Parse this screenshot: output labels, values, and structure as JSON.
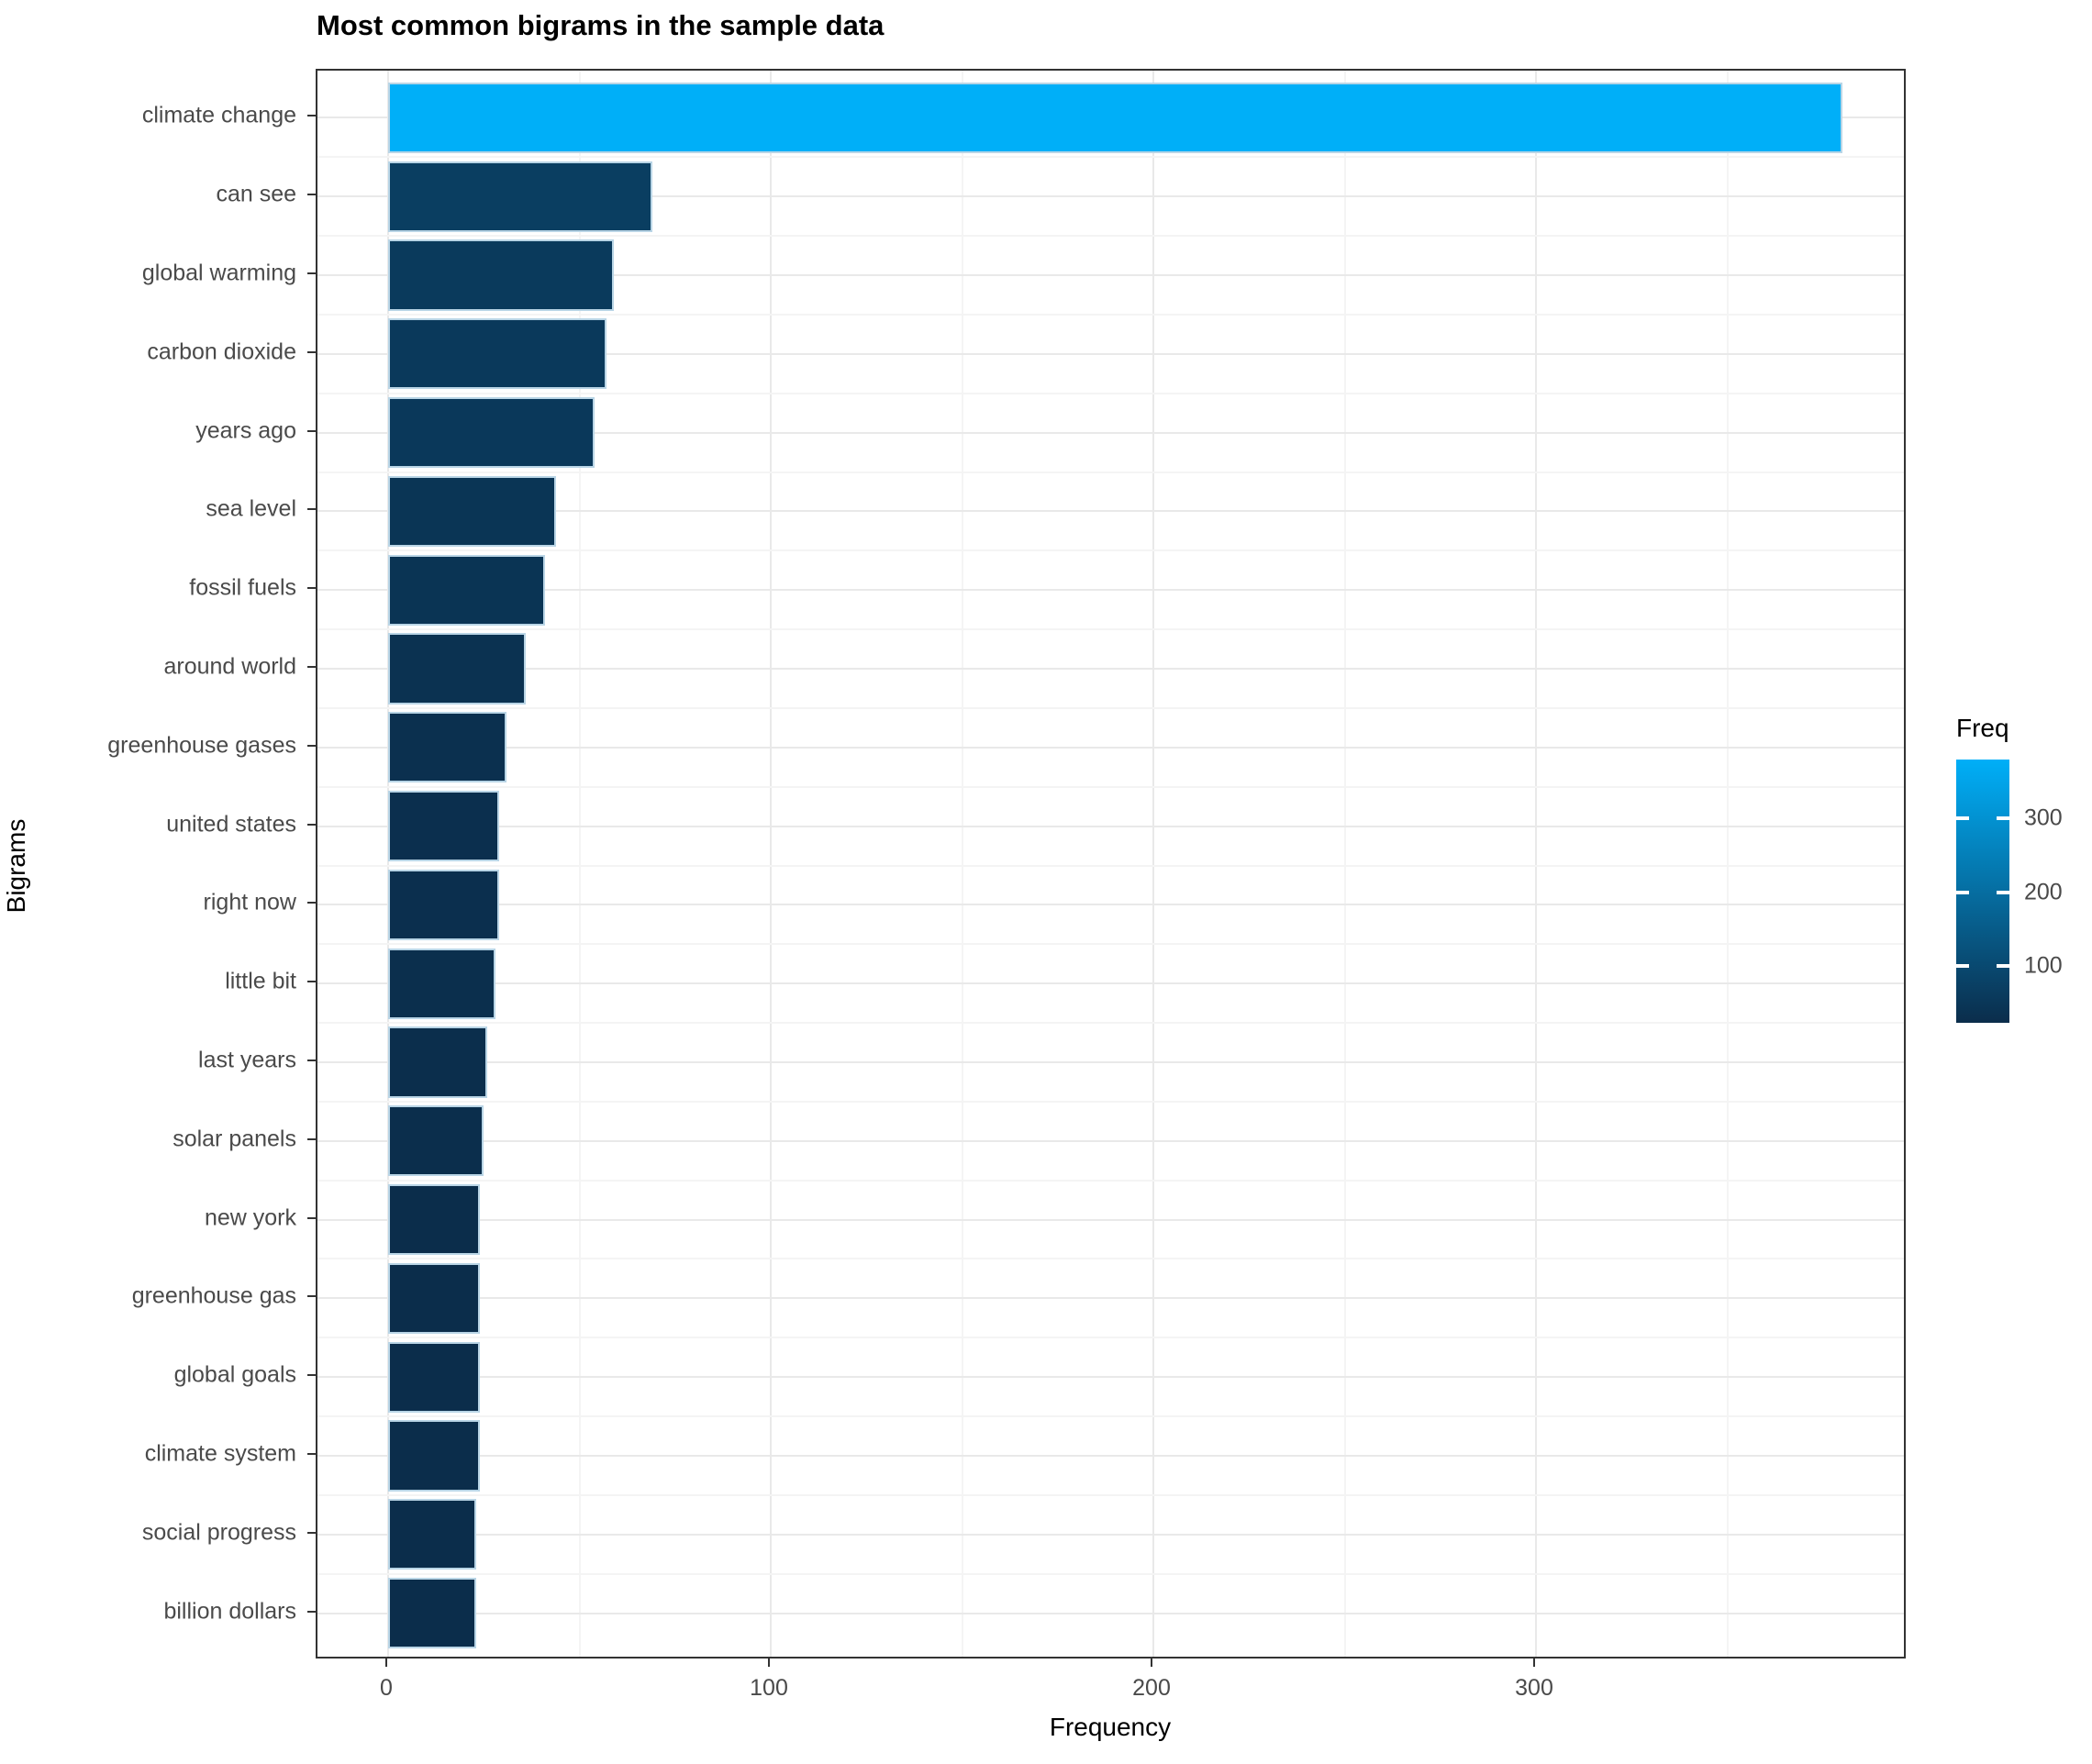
{
  "chart_data": {
    "type": "bar",
    "orientation": "horizontal",
    "title": "Most common bigrams in the sample data",
    "xlabel": "Frequency",
    "ylabel": "Bigrams",
    "categories": [
      "climate change",
      "can see",
      "global warming",
      "carbon dioxide",
      "years ago",
      "sea level",
      "fossil fuels",
      "around world",
      "greenhouse gases",
      "united states",
      "right now",
      "little bit",
      "last years",
      "solar panels",
      "new york",
      "greenhouse gas",
      "global goals",
      "climate system",
      "social progress",
      "billion dollars"
    ],
    "values": [
      380,
      69,
      59,
      57,
      54,
      44,
      41,
      36,
      31,
      29,
      29,
      28,
      26,
      25,
      24,
      24,
      24,
      24,
      23,
      23
    ],
    "x_ticks": [
      0,
      100,
      200,
      300
    ],
    "x_minor_ticks": [
      50,
      150,
      250,
      350
    ],
    "xlim": [
      -18,
      397
    ],
    "grid": true,
    "legend": {
      "title": "Freq",
      "position": "right",
      "ticks": [
        100,
        200,
        300
      ],
      "min": 23,
      "max": 380
    }
  },
  "colors": {
    "bar_low": "#0B2D4B",
    "bar_high": "#00AFF8",
    "bar_border": "#B9D5E6",
    "grid_major": "#E9E9E9",
    "grid_minor": "#F4F4F4",
    "panel_border": "#333333",
    "tick_mark": "#333333",
    "axis_text": "#4A4A4A",
    "title_text": "#000000"
  }
}
